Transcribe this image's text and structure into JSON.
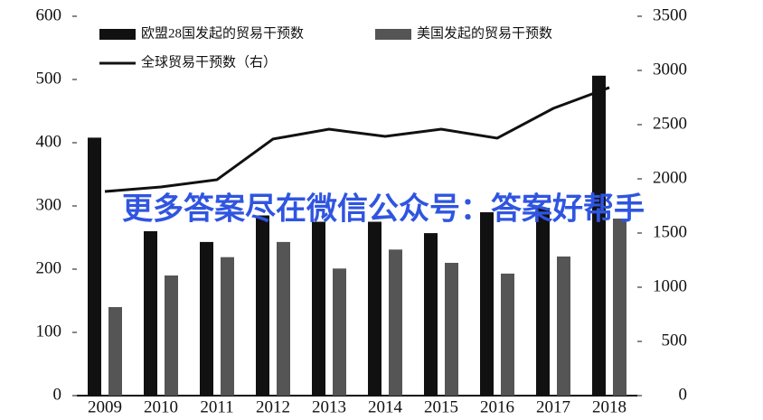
{
  "chart_data": {
    "type": "bar_line",
    "categories": [
      "2009",
      "2010",
      "2011",
      "2012",
      "2013",
      "2014",
      "2015",
      "2016",
      "2017",
      "2018"
    ],
    "series": [
      {
        "name": "欧盟28国发起的贸易干预数",
        "color": "#111111",
        "type": "bar",
        "values": [
          408,
          260,
          243,
          285,
          275,
          275,
          257,
          290,
          297,
          506
        ]
      },
      {
        "name": "美国发起的贸易干预数",
        "color": "#555555",
        "type": "bar",
        "values": [
          140,
          190,
          219,
          243,
          201,
          231,
          210,
          193,
          220,
          280
        ]
      },
      {
        "name": "全球贸易干预数（右）",
        "color": "#111111",
        "type": "line",
        "axis": "y2",
        "values": [
          1883,
          1925,
          1992,
          2367,
          2458,
          2392,
          2458,
          2375,
          2650,
          2842
        ]
      }
    ],
    "ylim": [
      0,
      600
    ],
    "yticks": [
      0,
      100,
      200,
      300,
      400,
      500,
      600
    ],
    "y2lim": [
      0,
      3500
    ],
    "y2ticks": [
      0,
      500,
      1000,
      1500,
      2000,
      2500,
      3000,
      3500
    ],
    "annotation": "更多答案尽在微信公众号：答案好帮手"
  }
}
